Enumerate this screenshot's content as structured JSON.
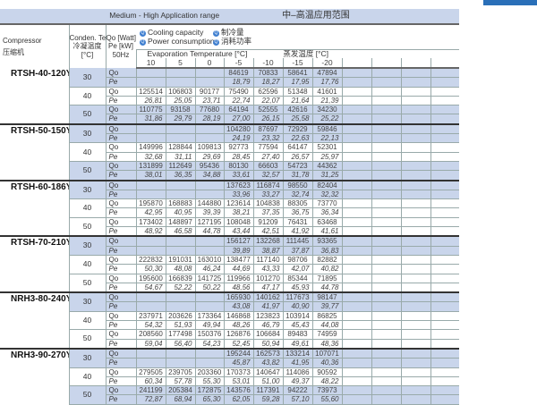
{
  "range": {
    "en": "Medium - High Application range",
    "cn": "中–高温应用范围"
  },
  "header": {
    "compressor_en": "Compressor",
    "compressor_cn": "压缩机",
    "cond_en": "Conden. Temp",
    "cond_cn": "冷凝温度",
    "cond_unit": "[°C]",
    "qo": "Qo [Watt]",
    "pe": "Pe [kW]",
    "hz": "50Hz",
    "legend": [
      {
        "en": "Cooling capacity",
        "cn": "制冷量",
        "icon": "info-circle-icon"
      },
      {
        "en": "Power consumption",
        "cn": "消耗功率",
        "icon": "info-circle-icon"
      }
    ],
    "evap_en": "Evaporation Temperature [°C]",
    "evap_cn": "蒸发温度 [°C]",
    "temps": [
      "10",
      "5",
      "0",
      "-5",
      "-10",
      "-15",
      "-20"
    ]
  },
  "colors": {
    "band": "#c9d5eb",
    "accent": "#3f7fd0"
  },
  "models": [
    {
      "name": "RTSH-40-120Y",
      "rows": [
        {
          "cond": "30",
          "shaded": true,
          "qo": [
            "",
            "",
            "",
            "84619",
            "70833",
            "58641",
            "47894"
          ],
          "pe": [
            "",
            "",
            "",
            "18,79",
            "18,27",
            "17,95",
            "17,76"
          ]
        },
        {
          "cond": "40",
          "shaded": false,
          "qo": [
            "125514",
            "106803",
            "90177",
            "75490",
            "62596",
            "51348",
            "41601"
          ],
          "pe": [
            "26,81",
            "25,05",
            "23,71",
            "22,74",
            "22,07",
            "21,64",
            "21,39"
          ]
        },
        {
          "cond": "50",
          "shaded": true,
          "qo": [
            "110775",
            "93158",
            "77680",
            "64194",
            "52555",
            "42616",
            "34230"
          ],
          "pe": [
            "31,86",
            "29,79",
            "28,19",
            "27,00",
            "26,15",
            "25,58",
            "25,22"
          ]
        }
      ]
    },
    {
      "name": "RTSH-50-150Y",
      "rows": [
        {
          "cond": "30",
          "shaded": true,
          "qo": [
            "",
            "",
            "",
            "104280",
            "87697",
            "72929",
            "59846"
          ],
          "pe": [
            "",
            "",
            "",
            "24,19",
            "23,32",
            "22,63",
            "22,13"
          ]
        },
        {
          "cond": "40",
          "shaded": false,
          "qo": [
            "149996",
            "128844",
            "109813",
            "92773",
            "77594",
            "64147",
            "52301"
          ],
          "pe": [
            "32,68",
            "31,11",
            "29,69",
            "28,45",
            "27,40",
            "26,57",
            "25,97"
          ]
        },
        {
          "cond": "50",
          "shaded": true,
          "qo": [
            "131899",
            "112649",
            "95436",
            "80130",
            "66603",
            "54723",
            "44362"
          ],
          "pe": [
            "38,01",
            "36,35",
            "34,88",
            "33,61",
            "32,57",
            "31,78",
            "31,25"
          ]
        }
      ]
    },
    {
      "name": "RTSH-60-186Y",
      "rows": [
        {
          "cond": "30",
          "shaded": true,
          "qo": [
            "",
            "",
            "",
            "137623",
            "116874",
            "98550",
            "82404"
          ],
          "pe": [
            "",
            "",
            "",
            "33,96",
            "33,27",
            "32,74",
            "32,32"
          ]
        },
        {
          "cond": "40",
          "shaded": false,
          "qo": [
            "195870",
            "168883",
            "144880",
            "123614",
            "104838",
            "88305",
            "73770"
          ],
          "pe": [
            "42,95",
            "40,95",
            "39,39",
            "38,21",
            "37,35",
            "36,75",
            "36,34"
          ]
        },
        {
          "cond": "50",
          "shaded": false,
          "qo": [
            "173402",
            "148897",
            "127195",
            "108048",
            "91209",
            "76431",
            "63468"
          ],
          "pe": [
            "48,92",
            "46,58",
            "44,78",
            "43,44",
            "42,51",
            "41,92",
            "41,61"
          ]
        }
      ]
    },
    {
      "name": "RTSH-70-210Y",
      "rows": [
        {
          "cond": "30",
          "shaded": true,
          "qo": [
            "",
            "",
            "",
            "156127",
            "132268",
            "111445",
            "93365"
          ],
          "pe": [
            "",
            "",
            "",
            "39,89",
            "38,87",
            "37,87",
            "36,83"
          ]
        },
        {
          "cond": "40",
          "shaded": false,
          "qo": [
            "222832",
            "191031",
            "163010",
            "138477",
            "117140",
            "98706",
            "82882"
          ],
          "pe": [
            "50,30",
            "48,08",
            "46,24",
            "44,69",
            "43,33",
            "42,07",
            "40,82"
          ]
        },
        {
          "cond": "50",
          "shaded": false,
          "qo": [
            "195600",
            "166839",
            "141725",
            "119966",
            "101270",
            "85344",
            "71895"
          ],
          "pe": [
            "54,67",
            "52,22",
            "50,22",
            "48,56",
            "47,17",
            "45,93",
            "44,78"
          ]
        }
      ]
    },
    {
      "name": "NRH3-80-240Y",
      "rows": [
        {
          "cond": "30",
          "shaded": true,
          "qo": [
            "",
            "",
            "",
            "165930",
            "140162",
            "117673",
            "98147"
          ],
          "pe": [
            "",
            "",
            "",
            "43,08",
            "41,97",
            "40,90",
            "39,77"
          ]
        },
        {
          "cond": "40",
          "shaded": false,
          "qo": [
            "237971",
            "203626",
            "173364",
            "146868",
            "123823",
            "103914",
            "86825"
          ],
          "pe": [
            "54,32",
            "51,93",
            "49,94",
            "48,26",
            "46,79",
            "45,43",
            "44,08"
          ]
        },
        {
          "cond": "50",
          "shaded": false,
          "qo": [
            "208560",
            "177498",
            "150376",
            "126876",
            "106684",
            "89483",
            "74959"
          ],
          "pe": [
            "59,04",
            "56,40",
            "54,23",
            "52,45",
            "50,94",
            "49,61",
            "48,36"
          ]
        }
      ]
    },
    {
      "name": "NRH3-90-270Y",
      "rows": [
        {
          "cond": "30",
          "shaded": true,
          "qo": [
            "",
            "",
            "",
            "195244",
            "162573",
            "133214",
            "107071"
          ],
          "pe": [
            "",
            "",
            "",
            "45,87",
            "43,82",
            "41,95",
            "40,36"
          ]
        },
        {
          "cond": "40",
          "shaded": false,
          "qo": [
            "279505",
            "239705",
            "203360",
            "170373",
            "140647",
            "114086",
            "90592"
          ],
          "pe": [
            "60,34",
            "57,78",
            "55,30",
            "53,01",
            "51,00",
            "49,37",
            "48,22"
          ]
        },
        {
          "cond": "50",
          "shaded": true,
          "qo": [
            "241199",
            "205384",
            "172875",
            "143576",
            "117391",
            "94222",
            "73973"
          ],
          "pe": [
            "72,87",
            "68,94",
            "65,30",
            "62,05",
            "59,28",
            "57,10",
            "55,60"
          ]
        }
      ]
    }
  ],
  "row_labels": {
    "qo": "Qo",
    "pe": "Pe"
  }
}
